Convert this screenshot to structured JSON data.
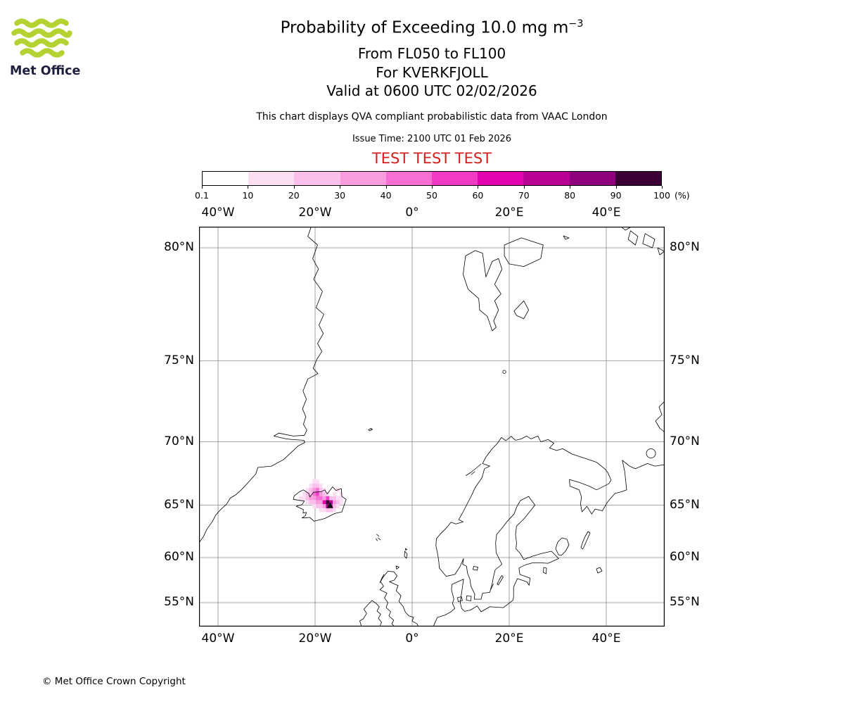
{
  "header": {
    "logo_text": "Met Office",
    "title_main": "Probability of Exceeding 10.0 mg m",
    "title_sup": "−3",
    "subtitle_fl": "From FL050 to FL100",
    "subtitle_volcano": "For KVERKFJOLL",
    "subtitle_valid": "Valid at 0600 UTC 02/02/2026",
    "description": "This chart displays QVA compliant probabilistic data from VAAC London",
    "issue_time": "Issue Time: 2100 UTC 01 Feb 2026",
    "test_banner": "TEST TEST TEST",
    "test_color": "#d41f1f"
  },
  "branding": {
    "logo_green": "#b5d233",
    "logo_text_color": "#1f1f3d"
  },
  "colorbar": {
    "tick_labels": [
      "0.1",
      "10",
      "20",
      "30",
      "40",
      "50",
      "60",
      "70",
      "80",
      "90",
      "100"
    ],
    "unit_label": "(%)",
    "colors": [
      "#ffffff",
      "#fcdef4",
      "#fac0ea",
      "#f89cdf",
      "#f76fd3",
      "#f13bc4",
      "#e304b0",
      "#bb0096",
      "#8e007d",
      "#3c0036"
    ]
  },
  "map": {
    "grid_lons": [
      -40,
      -20,
      0,
      20,
      40
    ],
    "grid_lats": [
      80,
      75,
      70,
      65,
      60,
      55
    ],
    "x_tick_labels": [
      "40°W",
      "20°W",
      "0°",
      "20°E",
      "40°E"
    ],
    "y_tick_labels": [
      "80°N",
      "75°N",
      "70°N",
      "65°N",
      "60°N",
      "55°N"
    ],
    "grid_color": "#8a8a8a"
  },
  "chart_data": {
    "type": "heatmap",
    "title": "Probability of Exceeding 10.0 mg m−3",
    "threshold": "10.0 mg m−3",
    "layer": "FL050 to FL100",
    "volcano": {
      "name": "KVERKFJOLL",
      "marker_lon_deg": -16.9,
      "marker_lat_deg": 64.9
    },
    "valid_at": "0600 UTC 02/02/2026",
    "issue_time": "2100 UTC 01 Feb 2026",
    "source": "VAAC London",
    "probability_levels_percent": [
      0.1,
      10,
      20,
      30,
      40,
      50,
      60,
      70,
      80,
      90,
      100
    ],
    "cell_size_deg": {
      "lon": 0.7,
      "lat": 0.35
    },
    "cells_lon_lat_level": [
      [
        -20.2,
        67.0,
        1
      ],
      [
        -19.5,
        67.0,
        1
      ],
      [
        -20.9,
        66.65,
        1
      ],
      [
        -20.2,
        66.65,
        2
      ],
      [
        -19.5,
        66.65,
        2
      ],
      [
        -18.8,
        66.65,
        1
      ],
      [
        -21.6,
        66.3,
        1
      ],
      [
        -20.9,
        66.3,
        2
      ],
      [
        -20.2,
        66.3,
        3
      ],
      [
        -19.5,
        66.3,
        4
      ],
      [
        -18.8,
        66.3,
        2
      ],
      [
        -18.1,
        66.3,
        1
      ],
      [
        -15.3,
        66.3,
        1
      ],
      [
        -22.3,
        65.95,
        1
      ],
      [
        -21.6,
        65.95,
        2
      ],
      [
        -20.9,
        65.95,
        2
      ],
      [
        -20.2,
        65.95,
        4
      ],
      [
        -19.5,
        65.95,
        5
      ],
      [
        -18.8,
        65.95,
        3
      ],
      [
        -18.1,
        65.95,
        2
      ],
      [
        -17.4,
        65.95,
        1
      ],
      [
        -16.0,
        65.95,
        1
      ],
      [
        -14.6,
        65.95,
        1
      ],
      [
        -23.0,
        65.6,
        1
      ],
      [
        -22.3,
        65.6,
        1
      ],
      [
        -21.6,
        65.6,
        2
      ],
      [
        -20.9,
        65.6,
        3
      ],
      [
        -20.2,
        65.6,
        3
      ],
      [
        -19.5,
        65.6,
        4
      ],
      [
        -18.8,
        65.6,
        4
      ],
      [
        -18.1,
        65.6,
        3
      ],
      [
        -17.4,
        65.6,
        5
      ],
      [
        -16.7,
        65.6,
        2
      ],
      [
        -16.0,
        65.6,
        2
      ],
      [
        -15.3,
        65.6,
        1
      ],
      [
        -14.6,
        65.6,
        1
      ],
      [
        -21.6,
        65.25,
        1
      ],
      [
        -20.9,
        65.25,
        2
      ],
      [
        -20.2,
        65.25,
        2
      ],
      [
        -19.5,
        65.25,
        3
      ],
      [
        -18.8,
        65.25,
        3
      ],
      [
        -18.1,
        65.25,
        6
      ],
      [
        -17.4,
        65.25,
        9
      ],
      [
        -16.7,
        65.25,
        7
      ],
      [
        -16.0,
        65.25,
        3
      ],
      [
        -15.3,
        65.25,
        2
      ],
      [
        -14.6,
        65.25,
        1
      ],
      [
        -20.2,
        64.9,
        1
      ],
      [
        -19.5,
        64.9,
        2
      ],
      [
        -18.8,
        64.9,
        2
      ],
      [
        -18.1,
        64.9,
        3
      ],
      [
        -17.4,
        64.9,
        8
      ],
      [
        -16.7,
        64.9,
        5
      ],
      [
        -16.0,
        64.9,
        2
      ],
      [
        -15.3,
        64.9,
        1
      ],
      [
        -18.8,
        64.55,
        1
      ],
      [
        -18.1,
        64.55,
        1
      ],
      [
        -17.4,
        64.55,
        2
      ],
      [
        -16.7,
        64.55,
        2
      ],
      [
        -16.0,
        64.55,
        1
      ]
    ]
  },
  "footer": {
    "copyright": "© Met Office Crown Copyright"
  }
}
